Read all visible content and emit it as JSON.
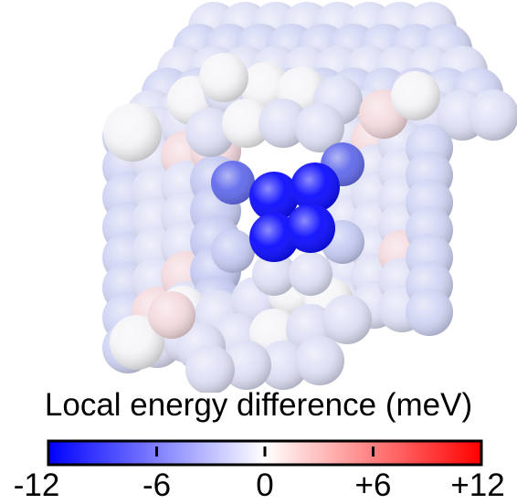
{
  "figure": {
    "colorbar": {
      "title": "Local energy difference (meV)",
      "range": [
        -12,
        12
      ],
      "colormap": [
        "#0000ff",
        "#ffffff",
        "#ff0000"
      ],
      "ticks": [
        {
          "value": -12,
          "label": "-12"
        },
        {
          "value": -6,
          "label": "-6"
        },
        {
          "value": 0,
          "label": "0"
        },
        {
          "value": 6,
          "label": "+6"
        },
        {
          "value": 12,
          "label": "+12"
        }
      ]
    }
  }
}
